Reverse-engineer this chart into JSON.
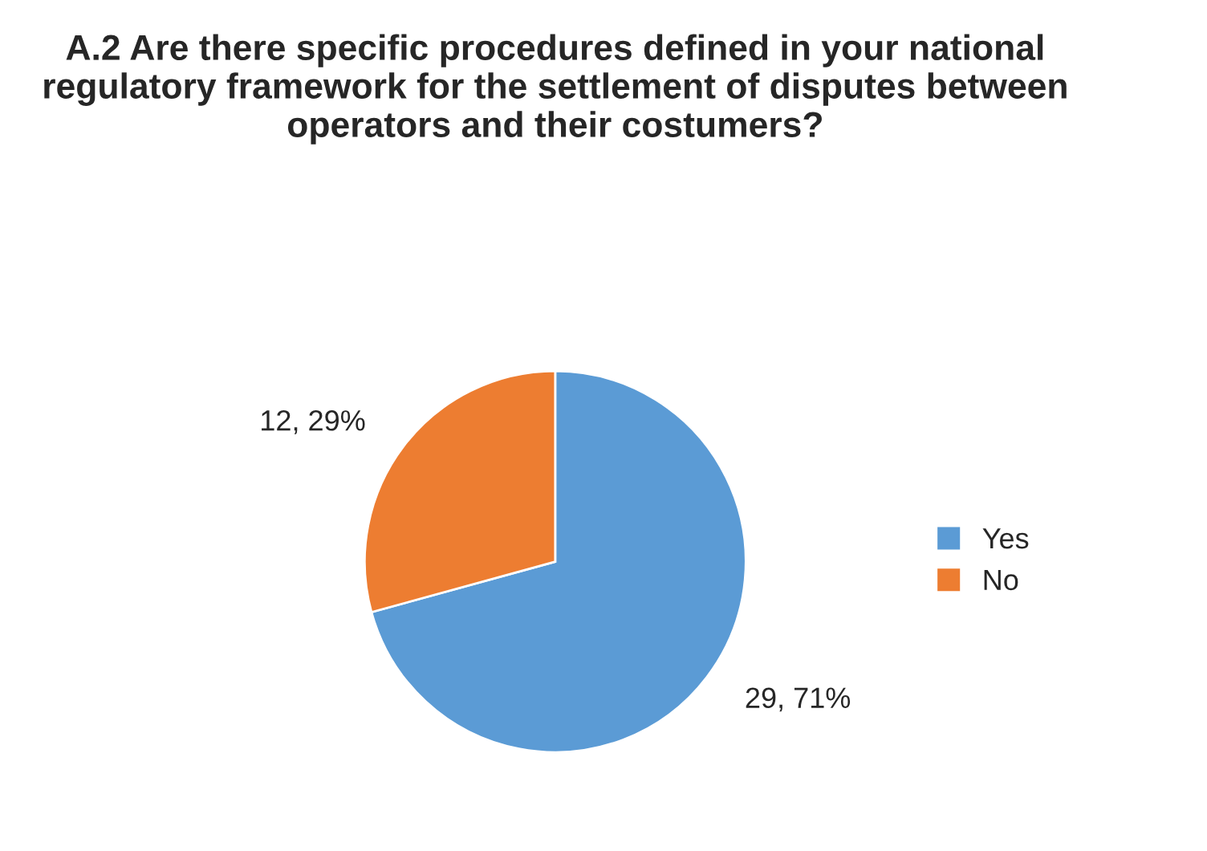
{
  "chart_data": {
    "type": "pie",
    "title": "A.2 Are there specific procedures defined in your national regulatory framework for the settlement of disputes between operators and their costumers?",
    "categories": [
      "Yes",
      "No"
    ],
    "values": [
      29,
      12
    ],
    "colors": [
      "#5b9bd5",
      "#ed7d31"
    ],
    "value_labels": [
      "29, 71%",
      "12, 29%"
    ],
    "legend": "right"
  }
}
